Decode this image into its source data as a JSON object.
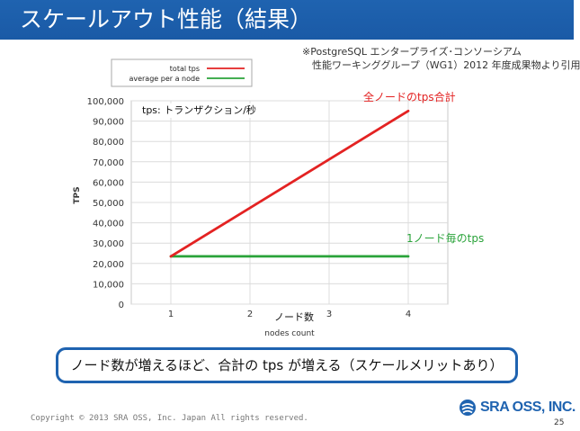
{
  "slide": {
    "title": "スケールアウト性能（結果）",
    "source_line1": "※PostgreSQL エンタープライズ･コンソーシアム",
    "source_line2": "性能ワーキンググループ（WG1）2012 年度成果物より引用",
    "callout": "ノード数が増えるほど、合計の tps が増える（スケールメリットあり）",
    "copyright": "Copyright © 2013 SRA OSS, Inc. Japan All rights reserved.",
    "logo_text": "SRA OSS, INC.",
    "page_number": "25"
  },
  "annotations": {
    "total": "全ノードのtps合計",
    "per_node": "1ノード毎のtps",
    "unit": "tps: トランザクション/秒",
    "nodes": "ノード数"
  },
  "chart_data": {
    "type": "line",
    "x": [
      1,
      4
    ],
    "series": [
      {
        "name": "total tps",
        "color": "#e32222",
        "values": [
          23500,
          95000
        ]
      },
      {
        "name": "average per a node",
        "color": "#2aa33a",
        "values": [
          23500,
          23500
        ]
      }
    ],
    "xlabel": "nodes count",
    "ylabel": "TPS",
    "xlim": [
      0.5,
      4.5
    ],
    "ylim": [
      0,
      100000
    ],
    "xticks": [
      "1",
      "2",
      "3",
      "4"
    ],
    "yticks": [
      "0",
      "10,000",
      "20,000",
      "30,000",
      "40,000",
      "50,000",
      "60,000",
      "70,000",
      "80,000",
      "90,000",
      "100,000"
    ],
    "grid": true,
    "legend_position": "top-left"
  },
  "colors": {
    "brand_blue": "#1f63b0",
    "total_line": "#e32222",
    "per_node_line": "#2aa33a"
  }
}
